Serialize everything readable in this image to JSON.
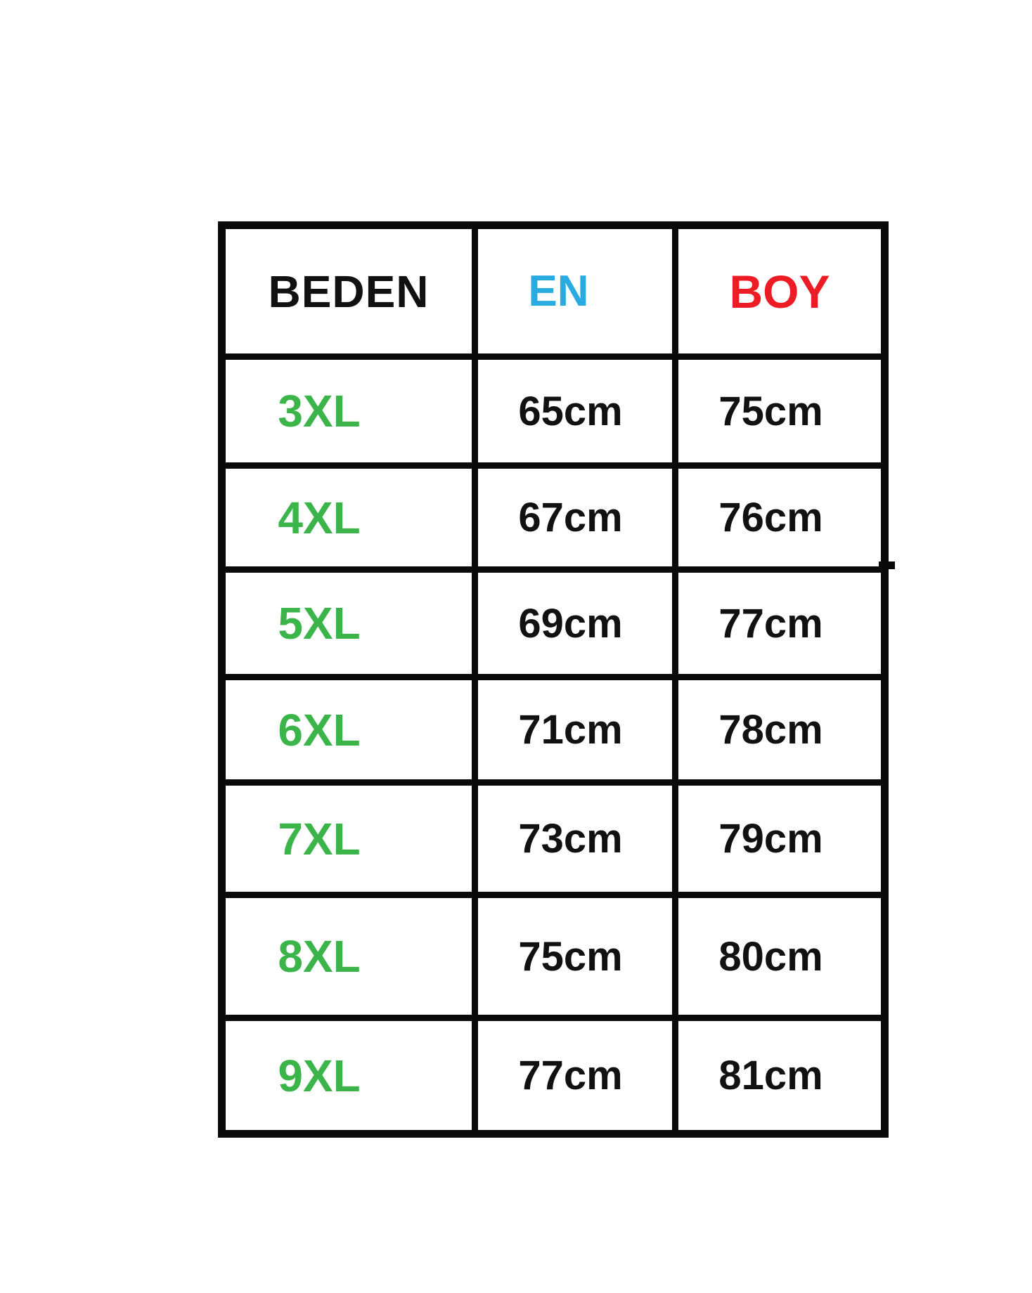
{
  "chart_data": {
    "type": "table",
    "title": "",
    "columns": [
      "BEDEN",
      "EN",
      "BOY"
    ],
    "rows": [
      [
        "3XL",
        "65cm",
        "75cm"
      ],
      [
        "4XL",
        "67cm",
        "76cm"
      ],
      [
        "5XL",
        "69cm",
        "77cm"
      ],
      [
        "6XL",
        "71cm",
        "78cm"
      ],
      [
        "7XL",
        "73cm",
        "79cm"
      ],
      [
        "8XL",
        "75cm",
        "80cm"
      ],
      [
        "9XL",
        "77cm",
        "81cm"
      ]
    ],
    "layout_hints": {
      "grid": "thick black cell borders, white background",
      "header_colors": {
        "BEDEN": "#111111",
        "EN": "#29ABE2",
        "BOY": "#ED1C24"
      },
      "size_column_color": "#3BB54A",
      "value_color": "#111111",
      "border_color": "#0a0a0a",
      "background_color": "#ffffff"
    }
  }
}
